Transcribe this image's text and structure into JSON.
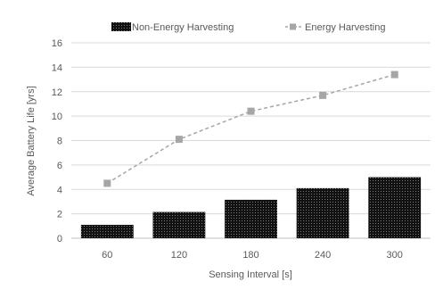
{
  "chart_data": {
    "type": "bar",
    "categories": [
      "60",
      "120",
      "180",
      "240",
      "300"
    ],
    "series": [
      {
        "name": "Non-Energy Harvesting",
        "kind": "bar",
        "values": [
          1.1,
          2.15,
          3.15,
          4.1,
          5.0
        ],
        "color": "#1a1a1a"
      },
      {
        "name": "Energy Harvesting",
        "kind": "line",
        "values": [
          4.5,
          8.1,
          10.4,
          11.7,
          13.4
        ],
        "color": "#a6a6a6"
      }
    ],
    "xlabel": "Sensing Interval [s]",
    "ylabel": "Average Battery Life [yrs]",
    "ylim": [
      0,
      16
    ],
    "yticks": [
      "0",
      "2",
      "4",
      "6",
      "8",
      "10",
      "12",
      "14",
      "16"
    ],
    "grid": true,
    "legend_position": "top"
  }
}
